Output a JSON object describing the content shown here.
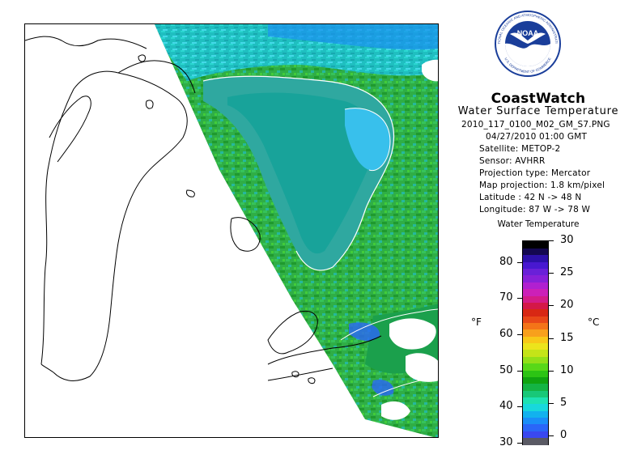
{
  "header": {
    "title": "CoastWatch",
    "subtitle": "Water Surface Temperature"
  },
  "info_lines": [
    "2010_117_0100_M02_GM_S7.PNG",
    "04/27/2010   01:00 GMT",
    "Satellite: METOP-2",
    "Sensor: AVHRR",
    "Projection type:  Mercator",
    "Map projection: 1.8 km/pixel",
    "Latitude : 42 N -> 48 N",
    "Longitude: 87 W -> 78 W"
  ],
  "legend": {
    "title": "Water Temperature",
    "unit_f": "°F",
    "unit_c": "°C",
    "fahrenheit_labels": [
      "30",
      "40",
      "50",
      "60",
      "70",
      "80"
    ],
    "celsius_labels": [
      "0",
      "5",
      "10",
      "15",
      "20",
      "25",
      "30"
    ],
    "colors": [
      "#5a5a64",
      "#3a48f0",
      "#2a66f8",
      "#1a8ef8",
      "#12b2ee",
      "#18d8dc",
      "#1ee2b2",
      "#18c878",
      "#14b444",
      "#10a410",
      "#2cc414",
      "#58d818",
      "#92e018",
      "#c4e418",
      "#ece41c",
      "#f8c818",
      "#f8a01c",
      "#f47418",
      "#e84818",
      "#d82814",
      "#d41848",
      "#d41c88",
      "#cc20b8",
      "#b020d0",
      "#8820d8",
      "#6a20d8",
      "#4818d0",
      "#2c10a8",
      "#140850",
      "#000000"
    ]
  },
  "logo": {
    "text": "NOAA",
    "ring_text_top": "NATIONAL OCEANIC AND ATMOSPHERIC ADMINISTRATION",
    "ring_text_bottom": "U.S. DEPARTMENT OF COMMERCE"
  }
}
